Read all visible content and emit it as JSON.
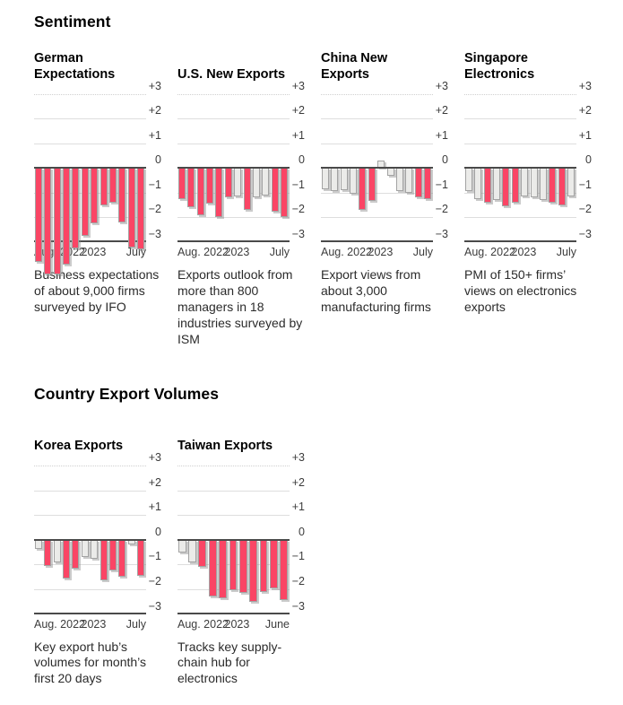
{
  "sections": [
    {
      "title": "Sentiment"
    },
    {
      "title": "Country Export Volumes"
    }
  ],
  "colors": {
    "highlight_bar": "#fa4565",
    "neutral_bar_fill": "#ebebe9",
    "bar_border": "#a3a3a3",
    "axis_line": "#4a4a4a",
    "gridline": "#dedede"
  },
  "y_axis": {
    "ticks": [
      "+3",
      "+2",
      "+1",
      "0",
      "−1",
      "−2",
      "−3"
    ],
    "tick_values": [
      3,
      2,
      1,
      0,
      -1,
      -2,
      -3
    ],
    "ylim": [
      -3,
      3.2
    ]
  },
  "chart_data": [
    {
      "section": "Sentiment",
      "title": "German Expectations",
      "caption": "Business expectations of about 9,000 firms surveyed by IFO",
      "type": "bar",
      "x": [
        "Aug. 2022",
        "Sep. 2022",
        "Oct. 2022",
        "Nov. 2022",
        "Dec. 2022",
        "Jan. 2023",
        "Feb. 2023",
        "Mar. 2023",
        "Apr. 2023",
        "May 2023",
        "June 2023",
        "July 2023"
      ],
      "values": [
        -3.8,
        -4.3,
        -4.3,
        -3.9,
        -3.25,
        -2.75,
        -2.25,
        -1.5,
        -1.4,
        -2.2,
        -3.2,
        -3.3
      ],
      "colors": [
        "highlight",
        "highlight",
        "highlight",
        "highlight",
        "highlight",
        "highlight",
        "highlight",
        "highlight",
        "highlight",
        "highlight",
        "highlight",
        "highlight"
      ],
      "x_tick_labels": [
        "Aug. 2022",
        "2023",
        "July"
      ],
      "ylim": [
        -3,
        3
      ],
      "yticks": [
        3,
        2,
        1,
        0,
        -1,
        -2,
        -3
      ],
      "grid": true,
      "legend": null
    },
    {
      "section": "Sentiment",
      "title": "U.S. New Exports",
      "caption": "Exports outlook from more than 800 managers in 18 industries surveyed by ISM",
      "type": "bar",
      "x": [
        "Aug. 2022",
        "Sep. 2022",
        "Oct. 2022",
        "Nov. 2022",
        "Dec. 2022",
        "Jan. 2023",
        "Feb. 2023",
        "Mar. 2023",
        "Apr. 2023",
        "May 2023",
        "June 2023",
        "July 2023"
      ],
      "values": [
        -1.25,
        -1.6,
        -1.9,
        -1.45,
        -2.0,
        -1.2,
        -1.15,
        -1.7,
        -1.2,
        -1.1,
        -1.75,
        -2.0
      ],
      "colors": [
        "highlight",
        "highlight",
        "highlight",
        "highlight",
        "highlight",
        "highlight",
        "neutral",
        "highlight",
        "neutral",
        "neutral",
        "highlight",
        "highlight"
      ],
      "x_tick_labels": [
        "Aug. 2022",
        "2023",
        "July"
      ],
      "ylim": [
        -3,
        3
      ],
      "yticks": [
        3,
        2,
        1,
        0,
        -1,
        -2,
        -3
      ],
      "grid": true,
      "legend": null
    },
    {
      "section": "Sentiment",
      "title": "China New Exports",
      "caption": "Export views from about 3,000 manufacturing firms",
      "type": "bar",
      "x": [
        "Aug. 2022",
        "Sep. 2022",
        "Oct. 2022",
        "Nov. 2022",
        "Dec. 2022",
        "Jan. 2023",
        "Feb. 2023",
        "Mar. 2023",
        "Apr. 2023",
        "May 2023",
        "June 2023",
        "July 2023"
      ],
      "values": [
        -0.85,
        -0.95,
        -0.9,
        -1.05,
        -1.7,
        -1.35,
        0.3,
        -0.3,
        -0.95,
        -1.0,
        -1.2,
        -1.25
      ],
      "colors": [
        "neutral",
        "neutral",
        "neutral",
        "neutral",
        "highlight",
        "highlight",
        "neutral",
        "neutral",
        "neutral",
        "neutral",
        "highlight",
        "highlight"
      ],
      "x_tick_labels": [
        "Aug. 2022",
        "2023",
        "July"
      ],
      "ylim": [
        -3,
        3
      ],
      "yticks": [
        3,
        2,
        1,
        0,
        -1,
        -2,
        -3
      ],
      "grid": true,
      "legend": null
    },
    {
      "section": "Sentiment",
      "title": "Singapore Electronics",
      "caption": "PMI of 150+ firms’ views on electronics exports",
      "type": "bar",
      "x": [
        "Aug. 2022",
        "Sep. 2022",
        "Oct. 2022",
        "Nov. 2022",
        "Dec. 2022",
        "Jan. 2023",
        "Feb. 2023",
        "Mar. 2023",
        "Apr. 2023",
        "May 2023",
        "June 2023",
        "July 2023"
      ],
      "values": [
        -0.95,
        -1.25,
        -1.4,
        -1.3,
        -1.55,
        -1.4,
        -1.15,
        -1.2,
        -1.3,
        -1.4,
        -1.5,
        -1.15
      ],
      "colors": [
        "neutral",
        "neutral",
        "highlight",
        "neutral",
        "highlight",
        "highlight",
        "neutral",
        "neutral",
        "neutral",
        "highlight",
        "highlight",
        "neutral"
      ],
      "x_tick_labels": [
        "Aug. 2022",
        "2023",
        "July"
      ],
      "ylim": [
        -3,
        3
      ],
      "yticks": [
        3,
        2,
        1,
        0,
        -1,
        -2,
        -3
      ],
      "grid": true,
      "legend": null
    },
    {
      "section": "Country Export Volumes",
      "title": "Korea Exports",
      "caption": "Key export hub’s volumes for month’s first 20 days",
      "type": "bar",
      "x": [
        "Aug. 2022",
        "Sep. 2022",
        "Oct. 2022",
        "Nov. 2022",
        "Dec. 2022",
        "Jan. 2023",
        "Feb. 2023",
        "Mar. 2023",
        "Apr. 2023",
        "May 2023",
        "June 2023",
        "July 2023"
      ],
      "values": [
        -0.35,
        -1.05,
        -0.9,
        -1.55,
        -1.15,
        -0.7,
        -0.75,
        -1.65,
        -1.25,
        -1.5,
        -0.2,
        -1.45
      ],
      "colors": [
        "neutral",
        "highlight",
        "neutral",
        "highlight",
        "highlight",
        "neutral",
        "neutral",
        "highlight",
        "highlight",
        "highlight",
        "neutral",
        "highlight"
      ],
      "x_tick_labels": [
        "Aug. 2022",
        "2023",
        "July"
      ],
      "ylim": [
        -3,
        3
      ],
      "yticks": [
        3,
        2,
        1,
        0,
        -1,
        -2,
        -3
      ],
      "grid": true,
      "legend": null
    },
    {
      "section": "Country Export Volumes",
      "title": "Taiwan Exports",
      "caption": "Tracks key supply-chain hub for electronics",
      "type": "bar",
      "x": [
        "Aug. 2022",
        "Sep. 2022",
        "Oct. 2022",
        "Nov. 2022",
        "Dec. 2022",
        "Jan. 2023",
        "Feb. 2023",
        "Mar. 2023",
        "Apr. 2023",
        "May 2023",
        "June 2023"
      ],
      "values": [
        -0.5,
        -0.9,
        -1.1,
        -2.3,
        -2.35,
        -2.05,
        -2.15,
        -2.5,
        -2.1,
        -1.95,
        -2.45
      ],
      "colors": [
        "neutral",
        "neutral",
        "highlight",
        "highlight",
        "highlight",
        "highlight",
        "highlight",
        "highlight",
        "highlight",
        "highlight",
        "highlight"
      ],
      "x_tick_labels": [
        "Aug. 2022",
        "2023",
        "June"
      ],
      "ylim": [
        -3,
        3
      ],
      "yticks": [
        3,
        2,
        1,
        0,
        -1,
        -2,
        -3
      ],
      "grid": true,
      "legend": null
    }
  ]
}
